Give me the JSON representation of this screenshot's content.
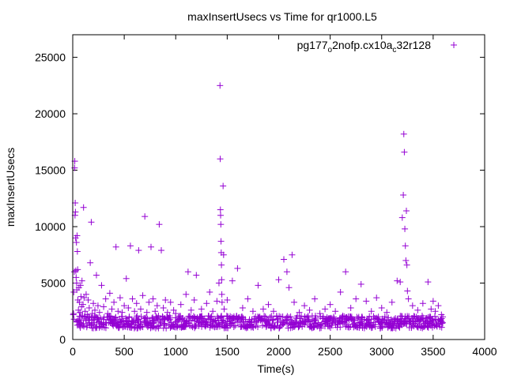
{
  "chart_data": {
    "type": "scatter",
    "title": "maxInsertUsecs vs Time for qr1000.L5",
    "xlabel": "Time(s)",
    "ylabel": "maxInsertUsecs",
    "xlim": [
      0,
      4000
    ],
    "ylim": [
      0,
      27000
    ],
    "xticks": [
      0,
      500,
      1000,
      1500,
      2000,
      2500,
      3000,
      3500,
      4000
    ],
    "yticks": [
      0,
      5000,
      10000,
      15000,
      20000,
      25000
    ],
    "grid": false,
    "legend_position": "top-right",
    "colors": {
      "series": "#9400d3",
      "axis": "#000000"
    },
    "series": [
      {
        "name_parts": [
          {
            "text": "pg177",
            "sub": false
          },
          {
            "text": "o",
            "sub": true
          },
          {
            "text": "2nofp.cx10a",
            "sub": false
          },
          {
            "text": "c",
            "sub": true
          },
          {
            "text": "32r128",
            "sub": false
          }
        ],
        "marker": "plus",
        "points": [
          [
            5,
            2200
          ],
          [
            8,
            2300
          ],
          [
            10,
            4200
          ],
          [
            12,
            1800
          ],
          [
            15,
            6000
          ],
          [
            18,
            15200
          ],
          [
            20,
            15800
          ],
          [
            22,
            11000
          ],
          [
            24,
            12100
          ],
          [
            26,
            11300
          ],
          [
            28,
            9000
          ],
          [
            30,
            6100
          ],
          [
            33,
            5500
          ],
          [
            36,
            8600
          ],
          [
            38,
            5000
          ],
          [
            40,
            4400
          ],
          [
            42,
            9200
          ],
          [
            45,
            7800
          ],
          [
            48,
            6200
          ],
          [
            50,
            3500
          ],
          [
            55,
            2600
          ],
          [
            60,
            4600
          ],
          [
            65,
            3300
          ],
          [
            70,
            2400
          ],
          [
            75,
            4800
          ],
          [
            80,
            3800
          ],
          [
            85,
            2900
          ],
          [
            90,
            5200
          ],
          [
            95,
            2100
          ],
          [
            100,
            3100
          ],
          [
            105,
            11700
          ],
          [
            110,
            3700
          ],
          [
            120,
            2500
          ],
          [
            130,
            4000
          ],
          [
            140,
            2200
          ],
          [
            150,
            3500
          ],
          [
            160,
            2800
          ],
          [
            170,
            6800
          ],
          [
            180,
            10400
          ],
          [
            190,
            2300
          ],
          [
            200,
            3200
          ],
          [
            215,
            2600
          ],
          [
            230,
            5700
          ],
          [
            245,
            3000
          ],
          [
            260,
            2400
          ],
          [
            280,
            4800
          ],
          [
            300,
            2900
          ],
          [
            320,
            3600
          ],
          [
            340,
            2300
          ],
          [
            360,
            4100
          ],
          [
            380,
            2700
          ],
          [
            400,
            3300
          ],
          [
            420,
            8200
          ],
          [
            440,
            2500
          ],
          [
            460,
            3700
          ],
          [
            480,
            2400
          ],
          [
            500,
            3000
          ],
          [
            520,
            5400
          ],
          [
            540,
            2800
          ],
          [
            560,
            8300
          ],
          [
            580,
            3600
          ],
          [
            600,
            2500
          ],
          [
            620,
            3200
          ],
          [
            640,
            7900
          ],
          [
            660,
            2700
          ],
          [
            680,
            3900
          ],
          [
            700,
            10900
          ],
          [
            720,
            2400
          ],
          [
            740,
            3300
          ],
          [
            760,
            8200
          ],
          [
            780,
            3600
          ],
          [
            800,
            2500
          ],
          [
            820,
            3000
          ],
          [
            840,
            10200
          ],
          [
            860,
            7900
          ],
          [
            880,
            2800
          ],
          [
            900,
            3500
          ],
          [
            920,
            2400
          ],
          [
            950,
            3300
          ],
          [
            980,
            2600
          ],
          [
            1000,
            2300
          ],
          [
            1050,
            3100
          ],
          [
            1100,
            4000
          ],
          [
            1120,
            6000
          ],
          [
            1150,
            2600
          ],
          [
            1180,
            3500
          ],
          [
            1200,
            5700
          ],
          [
            1250,
            2700
          ],
          [
            1300,
            3200
          ],
          [
            1330,
            4200
          ],
          [
            1360,
            2500
          ],
          [
            1400,
            3400
          ],
          [
            1420,
            5000
          ],
          [
            1430,
            22500
          ],
          [
            1432,
            16000
          ],
          [
            1434,
            11500
          ],
          [
            1436,
            11000
          ],
          [
            1438,
            10200
          ],
          [
            1440,
            8700
          ],
          [
            1442,
            7700
          ],
          [
            1444,
            6600
          ],
          [
            1446,
            5300
          ],
          [
            1448,
            4000
          ],
          [
            1450,
            3300
          ],
          [
            1460,
            13600
          ],
          [
            1465,
            7500
          ],
          [
            1470,
            2700
          ],
          [
            1500,
            3500
          ],
          [
            1550,
            5200
          ],
          [
            1600,
            6300
          ],
          [
            1650,
            2800
          ],
          [
            1700,
            3600
          ],
          [
            1750,
            2500
          ],
          [
            1800,
            4800
          ],
          [
            1850,
            2700
          ],
          [
            1900,
            3100
          ],
          [
            1950,
            2500
          ],
          [
            2000,
            5300
          ],
          [
            2050,
            7100
          ],
          [
            2080,
            6000
          ],
          [
            2100,
            4600
          ],
          [
            2130,
            7500
          ],
          [
            2150,
            3300
          ],
          [
            2200,
            2400
          ],
          [
            2250,
            3000
          ],
          [
            2300,
            2600
          ],
          [
            2350,
            3600
          ],
          [
            2400,
            2300
          ],
          [
            2450,
            2700
          ],
          [
            2500,
            3100
          ],
          [
            2550,
            2500
          ],
          [
            2600,
            4200
          ],
          [
            2650,
            6000
          ],
          [
            2700,
            2800
          ],
          [
            2750,
            3600
          ],
          [
            2800,
            4900
          ],
          [
            2850,
            3400
          ],
          [
            2900,
            2500
          ],
          [
            2950,
            3700
          ],
          [
            3000,
            2800
          ],
          [
            3050,
            2400
          ],
          [
            3100,
            3300
          ],
          [
            3150,
            5200
          ],
          [
            3180,
            5100
          ],
          [
            3200,
            10800
          ],
          [
            3210,
            12800
          ],
          [
            3215,
            18200
          ],
          [
            3220,
            16600
          ],
          [
            3225,
            9800
          ],
          [
            3230,
            8300
          ],
          [
            3235,
            7000
          ],
          [
            3240,
            11400
          ],
          [
            3245,
            6600
          ],
          [
            3250,
            4300
          ],
          [
            3260,
            3600
          ],
          [
            3300,
            3000
          ],
          [
            3350,
            2600
          ],
          [
            3400,
            3200
          ],
          [
            3450,
            5100
          ],
          [
            3480,
            2700
          ],
          [
            3500,
            3400
          ],
          [
            3520,
            2500
          ],
          [
            3550,
            3000
          ],
          [
            3580,
            2200
          ]
        ]
      }
    ]
  }
}
